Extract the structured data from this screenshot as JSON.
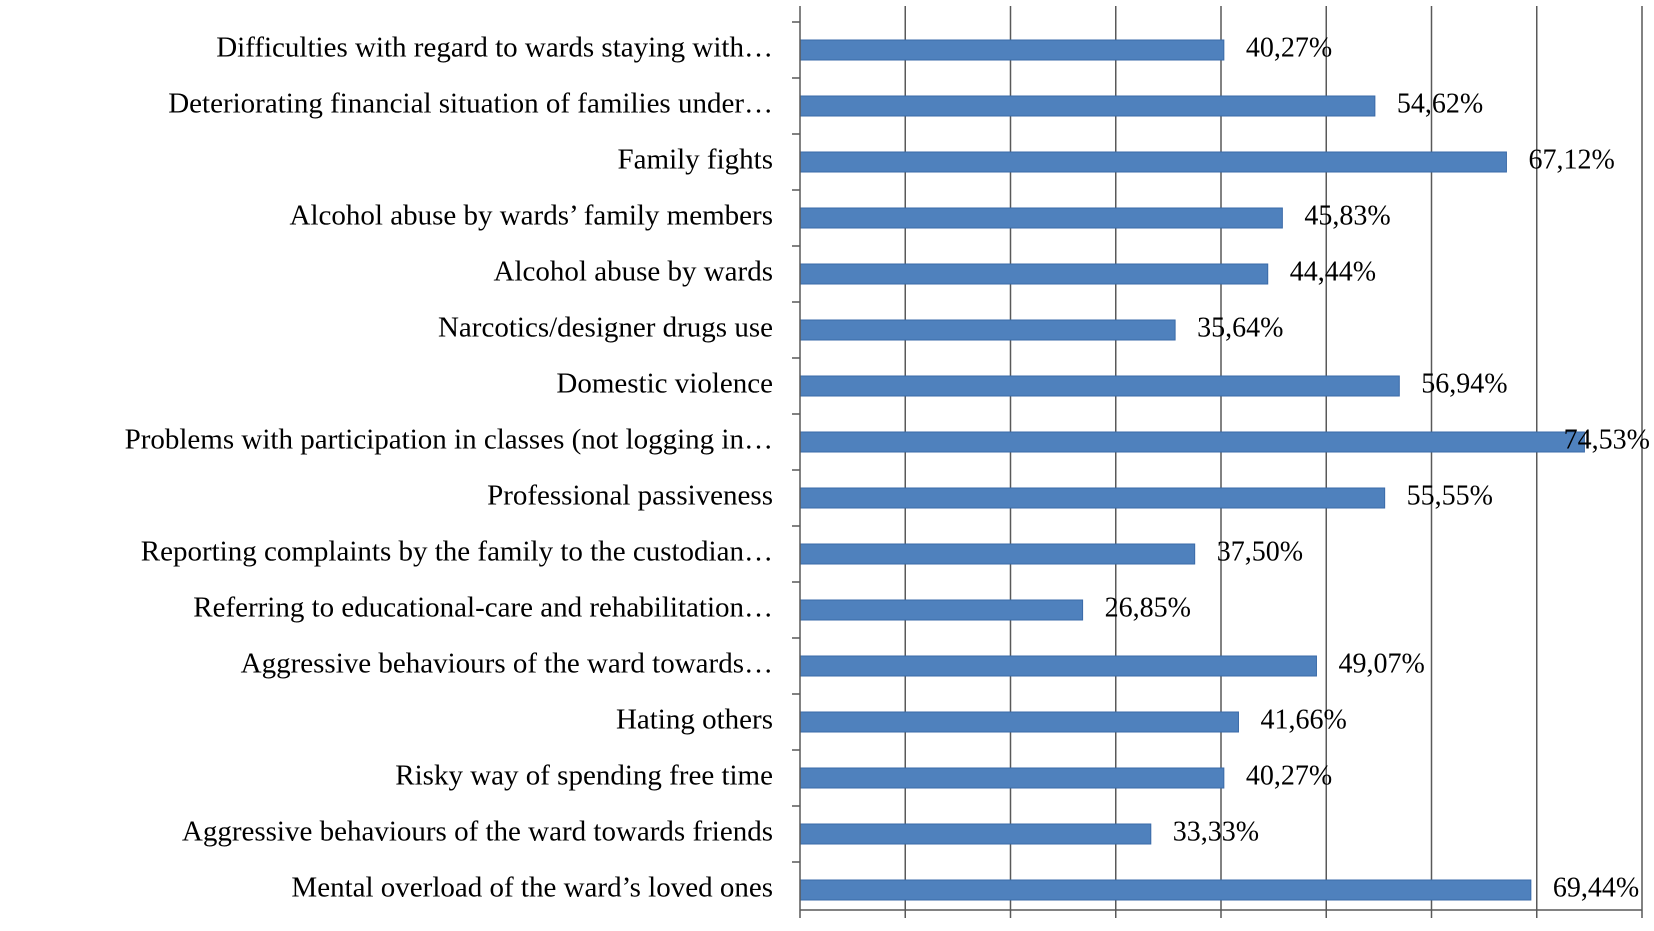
{
  "chart_data": {
    "type": "bar",
    "orientation": "horizontal",
    "title": "",
    "xlabel": "",
    "ylabel": "",
    "xlim": [
      0,
      80
    ],
    "grid": "vertical",
    "categories": [
      "Difficulties with regard to wards staying with…",
      "Deteriorating financial situation of families under…",
      "Family fights",
      "Alcohol abuse by wards’ family  members",
      "Alcohol abuse by wards",
      "Narcotics/designer drugs use",
      "Domestic violence",
      "Problems with participation in classes (not logging in…",
      "Professional passiveness",
      "Reporting complaints by the family to the custodian…",
      "Referring to educational-care and rehabilitation…",
      "Aggressive behaviours of the ward towards…",
      "Hating others",
      "Risky way of spending free time",
      "Aggressive behaviours of the ward towards friends",
      "Mental overload of the ward’s loved ones"
    ],
    "values": [
      40.27,
      54.62,
      67.12,
      45.83,
      44.44,
      35.64,
      56.94,
      74.53,
      55.55,
      37.5,
      26.85,
      49.07,
      41.66,
      40.27,
      33.33,
      69.44
    ],
    "value_labels": [
      "40,27%",
      "54,62%",
      "67,12%",
      "45,83%",
      "44,44%",
      "35,64%",
      "56,94%",
      "74,53%",
      "55,55%",
      "37,50%",
      "26,85%",
      "49,07%",
      "41,66%",
      "40,27%",
      "33,33%",
      "69,44%"
    ],
    "bar_color": "#4f81bd",
    "bar_edge_color": "#3a6aa8",
    "grid_color": "#595959",
    "text_color": "#000000"
  }
}
